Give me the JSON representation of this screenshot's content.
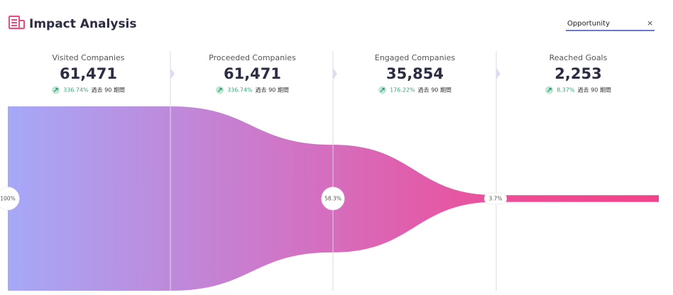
{
  "header": {
    "title": "Impact Analysis",
    "search": "Opportunity"
  },
  "stages": [
    {
      "name": "Visited Companies",
      "value": 61471,
      "value_label": "61,471",
      "change": "336.74%",
      "period": "過去 90 期間",
      "share": "100%"
    },
    {
      "name": "Proceeded Companies",
      "value": 61471,
      "value_label": "61,471",
      "change": "336.74%",
      "period": "過去 90 期間",
      "share": ""
    },
    {
      "name": "Engaged Companies",
      "value": 35854,
      "value_label": "35,854",
      "change": "176.22%",
      "period": "過去 90 期間",
      "share": "58.3%"
    },
    {
      "name": "Reached Goals",
      "value": 2253,
      "value_label": "2,253",
      "change": "8.37%",
      "period": "過去 90 期間",
      "share": "3.7%"
    }
  ]
}
